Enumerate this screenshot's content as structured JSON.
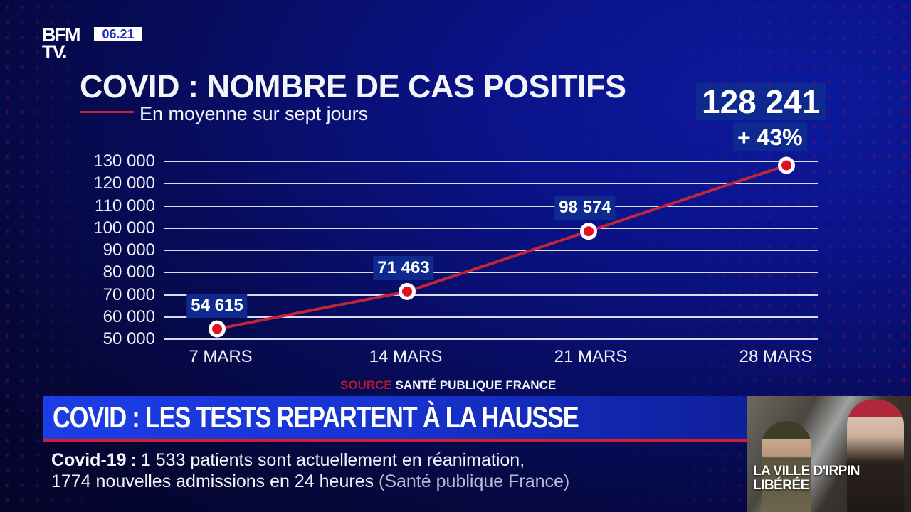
{
  "channel": {
    "logo_line1": "BFM",
    "logo_line2": "TV.",
    "clock": "06.21"
  },
  "graphic": {
    "title": "COVID : NOMBRE DE CAS POSITIFS",
    "subtitle": "En moyenne sur sept jours",
    "latest_value": "128 241",
    "latest_change": "+ 43%",
    "source_label": "SOURCE",
    "source_text": "SANTÉ PUBLIQUE FRANCE"
  },
  "chart_data": {
    "type": "line",
    "title": "COVID : NOMBRE DE CAS POSITIFS",
    "subtitle": "En moyenne sur sept jours",
    "xlabel": "",
    "ylabel": "",
    "categories": [
      "7 MARS",
      "14 MARS",
      "21 MARS",
      "28 MARS"
    ],
    "series": [
      {
        "name": "Cas positifs (moyenne sur sept jours)",
        "color": "#c3243a",
        "values": [
          54615,
          71463,
          98574,
          128241
        ],
        "labels": [
          "54 615",
          "71 463",
          "98 574",
          "128 241"
        ]
      }
    ],
    "ylim": [
      50000,
      130000
    ],
    "yticks": [
      130000,
      120000,
      110000,
      100000,
      90000,
      80000,
      70000,
      60000,
      50000
    ],
    "ytick_labels": [
      "130 000",
      "120 000",
      "110 000",
      "100 000",
      "90 000",
      "80 000",
      "70 000",
      "60 000",
      "50 000"
    ],
    "grid": true,
    "annotations": [
      {
        "text": "128 241",
        "target": "28 MARS"
      },
      {
        "text": "+ 43%",
        "target": "28 MARS"
      }
    ],
    "source": "SOURCE SANTÉ PUBLIQUE FRANCE"
  },
  "lower_third": {
    "headline": "COVID : LES TESTS REPARTENT À LA HAUSSE",
    "ticker_topic": "Covid-19",
    "ticker_sep": ":",
    "ticker_line1": "1 533 patients sont actuellement en réanimation,",
    "ticker_line2": "1774 nouvelles admissions en 24 heures",
    "ticker_credit": "(Santé publique France)"
  },
  "thumbnail": {
    "caption_line1": "LA VILLE D'IRPIN",
    "caption_line2": "LIBÉRÉE"
  },
  "colors": {
    "background": "#070c5c",
    "line": "#c3243a",
    "label_box": "#0f2a8f",
    "headline_bar": "#1d3ee6",
    "accent_red": "#d0202f",
    "clock_text": "#1f2fc2"
  }
}
